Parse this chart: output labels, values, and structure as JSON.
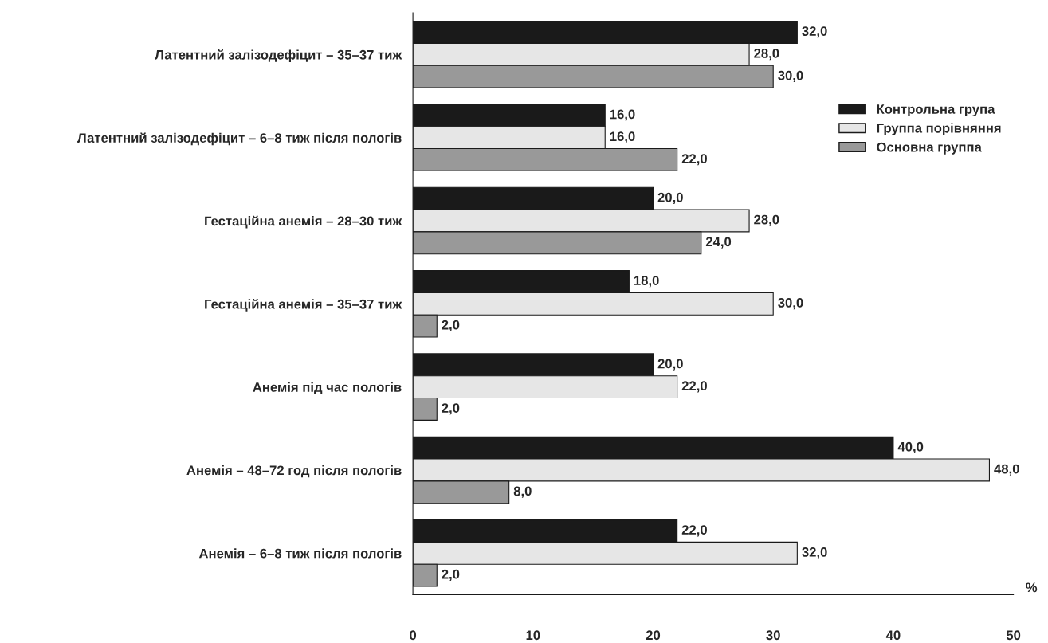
{
  "chart_data": {
    "type": "bar",
    "orientation": "horizontal",
    "xlabel": "%",
    "categories": [
      "Латентний залізодефіцит – 35–37 тиж",
      "Латентний залізодефіцит – 6–8 тиж після пологів",
      "Гестаційна анемія – 28–30 тиж",
      "Гестаційна анемія – 35–37 тиж",
      "Анемія під час пологів",
      "Анемія – 48–72 год після пологів",
      "Анемія – 6–8 тиж після пологів"
    ],
    "series": [
      {
        "name": "Контрольна група",
        "color": "#1a1a1a",
        "values": [
          32.0,
          16.0,
          20.0,
          18.0,
          20.0,
          40.0,
          22.0
        ],
        "value_labels": [
          "32,0",
          "16,0",
          "20,0",
          "18,0",
          "20,0",
          "40,0",
          "22,0"
        ]
      },
      {
        "name": "Группа порівняння",
        "color": "#e6e6e6",
        "values": [
          28.0,
          16.0,
          28.0,
          30.0,
          22.0,
          48.0,
          32.0
        ],
        "value_labels": [
          "28,0",
          "16,0",
          "28,0",
          "30,0",
          "22,0",
          "48,0",
          "32,0"
        ]
      },
      {
        "name": "Основна группа",
        "color": "#999999",
        "values": [
          30.0,
          22.0,
          24.0,
          2.0,
          2.0,
          8.0,
          2.0
        ],
        "value_labels": [
          "30,0",
          "22,0",
          "24,0",
          "2,0",
          "2,0",
          "8,0",
          "2,0"
        ]
      }
    ],
    "xlim": [
      0,
      50
    ],
    "xticks": [
      0,
      10,
      20,
      30,
      40,
      50
    ],
    "grid": false,
    "legend": "right"
  }
}
